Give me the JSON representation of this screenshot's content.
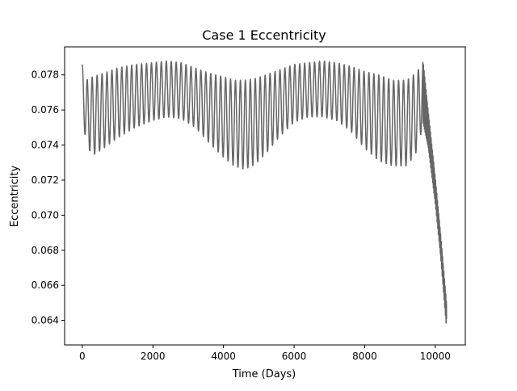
{
  "chart_data": {
    "type": "line",
    "title": "Case 1 Eccentricity",
    "xlabel": "Time (Days)",
    "ylabel": "Eccentricity",
    "xlim": [
      -500,
      10850
    ],
    "ylim": [
      0.0626,
      0.0796
    ],
    "x_ticks": [
      0,
      2000,
      4000,
      6000,
      8000,
      10000
    ],
    "x_tick_labels": [
      "0",
      "2000",
      "4000",
      "6000",
      "8000",
      "10000"
    ],
    "y_ticks": [
      0.064,
      0.066,
      0.068,
      0.07,
      0.072,
      0.074,
      0.076,
      0.078
    ],
    "y_tick_labels": [
      "0.064",
      "0.066",
      "0.068",
      "0.070",
      "0.072",
      "0.074",
      "0.076",
      "0.078"
    ],
    "grid": false,
    "series": [
      {
        "color": "#666666",
        "oscillation_period_days": 140,
        "upper_envelope": {
          "x": [
            0,
            100,
            300,
            600,
            1000,
            1500,
            2000,
            2400,
            2800,
            3200,
            3600,
            4000,
            4300,
            4600,
            4900,
            5200,
            5600,
            6000,
            6400,
            6800,
            7200,
            7600,
            8000,
            8400,
            8800,
            9200,
            9500,
            9650
          ],
          "y": [
            0.0786,
            0.0777,
            0.0779,
            0.0781,
            0.0784,
            0.0786,
            0.0787,
            0.0788,
            0.0787,
            0.0784,
            0.0781,
            0.0779,
            0.0777,
            0.0777,
            0.0778,
            0.078,
            0.0783,
            0.0786,
            0.0787,
            0.0788,
            0.0787,
            0.0785,
            0.0782,
            0.078,
            0.0777,
            0.0777,
            0.0782,
            0.079
          ]
        },
        "lower_envelope": {
          "x": [
            0,
            100,
            300,
            600,
            1000,
            1500,
            2000,
            2400,
            2800,
            3200,
            3600,
            4000,
            4300,
            4600,
            4900,
            5200,
            5600,
            6000,
            6400,
            6800,
            7200,
            7600,
            8000,
            8400,
            8800,
            9200,
            9500,
            9650
          ],
          "y": [
            0.0763,
            0.074,
            0.0734,
            0.0738,
            0.0744,
            0.075,
            0.0754,
            0.0756,
            0.0755,
            0.075,
            0.0741,
            0.0733,
            0.0728,
            0.0726,
            0.0729,
            0.0735,
            0.0745,
            0.0753,
            0.0756,
            0.0756,
            0.0754,
            0.0748,
            0.0738,
            0.0731,
            0.0728,
            0.0728,
            0.0737,
            0.0752
          ]
        },
        "decay": {
          "x": [
            9650,
            9800,
            10000,
            10150,
            10320
          ],
          "y_upper": [
            0.079,
            0.076,
            0.0722,
            0.069,
            0.065
          ],
          "y_lower": [
            0.0752,
            0.0738,
            0.0706,
            0.0676,
            0.0634
          ]
        }
      }
    ]
  }
}
